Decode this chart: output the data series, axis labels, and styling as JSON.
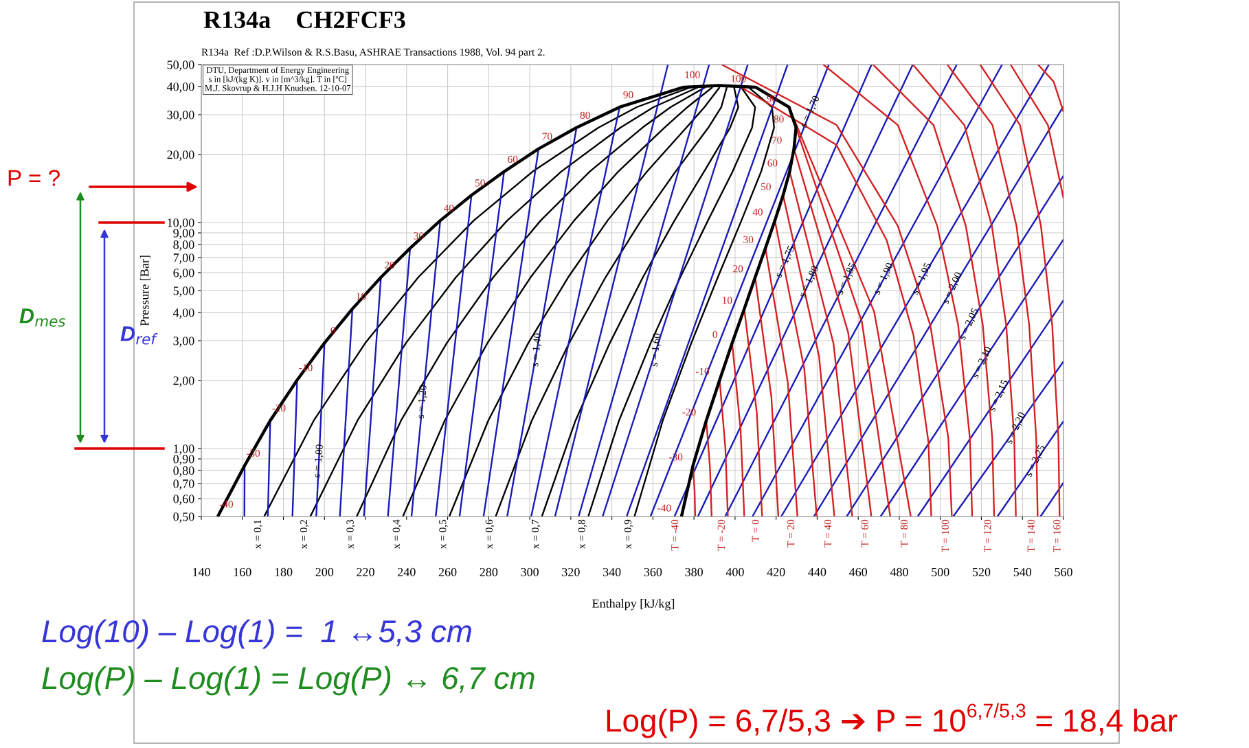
{
  "chart_data": {
    "type": "line",
    "title": "R134a    CH2FCF3",
    "subtitle": "R134a  Ref :D.P.Wilson & R.S.Basu, ASHRAE Transactions 1988, Vol. 94 part 2.",
    "xlabel": "Enthalpy [kJ/kg]",
    "ylabel": "Pressure [Bar]",
    "log": "y",
    "grid": true,
    "marker": "none",
    "line_style": "solid",
    "xlim": [
      140,
      560
    ],
    "ylim": [
      0.5,
      50
    ],
    "xticks": [
      140,
      160,
      180,
      200,
      220,
      240,
      260,
      280,
      300,
      320,
      340,
      360,
      380,
      400,
      420,
      440,
      460,
      480,
      500,
      520,
      540,
      560
    ],
    "yticks": [
      {
        "value": 50,
        "label": "50,00"
      },
      {
        "value": 40,
        "label": "40,00"
      },
      {
        "value": 30,
        "label": "30,00"
      },
      {
        "value": 20,
        "label": "20,00"
      },
      {
        "value": 10,
        "label": "10,00"
      },
      {
        "value": 9,
        "label": "9,00"
      },
      {
        "value": 8,
        "label": "8,00"
      },
      {
        "value": 7,
        "label": "7,00"
      },
      {
        "value": 6,
        "label": "6,00"
      },
      {
        "value": 5,
        "label": "5,00"
      },
      {
        "value": 4,
        "label": "4,00"
      },
      {
        "value": 3,
        "label": "3,00"
      },
      {
        "value": 2,
        "label": "2,00"
      },
      {
        "value": 1,
        "label": "1,00"
      },
      {
        "value": 0.9,
        "label": "0,90"
      },
      {
        "value": 0.8,
        "label": "0,80"
      },
      {
        "value": 0.7,
        "label": "0,70"
      },
      {
        "value": 0.6,
        "label": "0,60"
      },
      {
        "value": 0.5,
        "label": "0,50"
      }
    ],
    "series": [
      {
        "color": "#000000",
        "x": [
          148,
          161.1,
          173.6,
          186.7,
          200,
          213.6,
          227.5,
          241.7,
          256.4,
          271.6,
          287.5,
          304.3,
          322.8,
          343.8,
          375,
          392.2,
          410,
          426.3,
          429.7,
          428.7,
          426.6,
          423.4,
          419.4,
          414.8,
          409.8,
          404.5,
          398.6,
          392.5,
          386,
          379.5,
          373.9
        ],
        "values": [
          0.5,
          0.84,
          1.33,
          2.01,
          2.93,
          4.15,
          5.72,
          7.7,
          10.2,
          13.2,
          16.8,
          21.2,
          26.3,
          32.4,
          39.7,
          40.4,
          39.7,
          32.4,
          26.3,
          21.2,
          16.8,
          13.2,
          10.2,
          7.7,
          5.72,
          4.15,
          2.93,
          2.01,
          1.33,
          0.84,
          0.5
        ]
      },
      {
        "color": "#000000",
        "x": [
          170.6,
          194.8,
          219.9,
          245.7,
          272.7,
          301.4,
          333.5,
          352.1,
          378.5
        ],
        "values": [
          0.5,
          1.33,
          2.93,
          5.72,
          10.2,
          16.8,
          26.3,
          32.4,
          39.7
        ]
      },
      {
        "color": "#000000",
        "x": [
          193.1,
          216.1,
          239.7,
          264,
          289,
          315.3,
          344.2,
          360.3,
          382
        ],
        "values": [
          0.5,
          1.33,
          2.93,
          5.72,
          10.2,
          16.8,
          26.3,
          32.4,
          39.7
        ]
      },
      {
        "color": "#000000",
        "x": [
          215.7,
          237.3,
          259.6,
          282.2,
          305.3,
          329.2,
          354.9,
          368.6,
          385.5
        ],
        "values": [
          0.5,
          1.33,
          2.93,
          5.72,
          10.2,
          16.8,
          26.3,
          32.4,
          39.7
        ]
      },
      {
        "color": "#000000",
        "x": [
          238.2,
          258.6,
          279.4,
          300.4,
          321.6,
          343.1,
          365.6,
          376.8,
          389
        ],
        "values": [
          0.5,
          1.33,
          2.93,
          5.72,
          10.2,
          16.8,
          26.3,
          32.4,
          39.7
        ]
      },
      {
        "color": "#000000",
        "x": [
          260.8,
          279.8,
          299.3,
          318.7,
          337.9,
          357.1,
          376.3,
          385.1,
          392.5
        ],
        "values": [
          0.5,
          1.33,
          2.93,
          5.72,
          10.2,
          16.8,
          26.3,
          32.4,
          39.7
        ]
      },
      {
        "color": "#000000",
        "x": [
          283.4,
          301,
          319.2,
          336.9,
          354.2,
          371,
          387,
          393.3,
          396
        ],
        "values": [
          0.5,
          1.33,
          2.93,
          5.72,
          10.2,
          16.8,
          26.3,
          32.4,
          39.7
        ]
      },
      {
        "color": "#000000",
        "x": [
          305.9,
          322.3,
          339,
          355.1,
          370.5,
          384.9,
          397.6,
          401.6,
          399.5
        ],
        "values": [
          0.5,
          1.33,
          2.93,
          5.72,
          10.2,
          16.8,
          26.3,
          32.4,
          39.7
        ]
      },
      {
        "color": "#000000",
        "x": [
          328.5,
          343.5,
          358.9,
          373.3,
          386.8,
          398.8,
          408.3,
          409.8,
          403
        ],
        "values": [
          0.5,
          1.33,
          2.93,
          5.72,
          10.2,
          16.8,
          26.3,
          32.4,
          39.7
        ]
      },
      {
        "color": "#000000",
        "x": [
          351,
          364.8,
          378.7,
          391.6,
          403.1,
          412.7,
          419,
          418,
          406.5
        ],
        "values": [
          0.5,
          1.33,
          2.93,
          5.72,
          10.2,
          16.8,
          26.3,
          32.4,
          39.7
        ]
      },
      {
        "color": "#1a1ab8",
        "x": [
          161,
          161.1
        ],
        "values": [
          0.5,
          0.84
        ]
      },
      {
        "color": "#1a1ab8",
        "x": [
          172.4,
          173.6
        ],
        "values": [
          0.5,
          1.33
        ]
      },
      {
        "color": "#1a1ab8",
        "x": [
          184.4,
          186.7
        ],
        "values": [
          0.5,
          2.01
        ]
      },
      {
        "color": "#1a1ab8",
        "x": [
          196,
          200
        ],
        "values": [
          0.5,
          2.93
        ]
      },
      {
        "color": "#1a1ab8",
        "x": [
          207.5,
          213.6
        ],
        "values": [
          0.5,
          4.15
        ]
      },
      {
        "color": "#1a1ab8",
        "x": [
          219.2,
          227.5
        ],
        "values": [
          0.5,
          5.72
        ]
      },
      {
        "color": "#1a1ab8",
        "x": [
          230.9,
          241.7
        ],
        "values": [
          0.5,
          7.7
        ]
      },
      {
        "color": "#1a1ab8",
        "x": [
          242.4,
          256.4
        ],
        "values": [
          0.5,
          10.2
        ]
      },
      {
        "color": "#1a1ab8",
        "x": [
          254.2,
          271.6
        ],
        "values": [
          0.5,
          13.2
        ]
      },
      {
        "color": "#1a1ab8",
        "x": [
          265.8,
          287.5
        ],
        "values": [
          0.5,
          16.8
        ]
      },
      {
        "color": "#1a1ab8",
        "x": [
          277.5,
          304.3
        ],
        "values": [
          0.5,
          21.2
        ]
      },
      {
        "color": "#1a1ab8",
        "x": [
          289,
          322.8
        ],
        "values": [
          0.5,
          26.3
        ]
      },
      {
        "color": "#1a1ab8",
        "x": [
          300.7,
          343.8
        ],
        "values": [
          0.5,
          32.4
        ]
      },
      {
        "color": "#1a1ab8",
        "x": [
          312.3,
          367.3
        ],
        "values": [
          0.5,
          50
        ]
      },
      {
        "color": "#1a1ab8",
        "x": [
          323.8,
          387.4
        ],
        "values": [
          0.5,
          50
        ]
      },
      {
        "color": "#1a1ab8",
        "x": [
          335.5,
          406.2
        ],
        "values": [
          0.5,
          50
        ]
      },
      {
        "color": "#1a1ab8",
        "x": [
          347.2,
          425.6
        ],
        "values": [
          0.5,
          50
        ]
      },
      {
        "color": "#1a1ab8",
        "x": [
          358.8,
          445.7
        ],
        "values": [
          0.5,
          50
        ]
      },
      {
        "color": "#1a1ab8",
        "x": [
          370.5,
          466.5
        ],
        "values": [
          0.5,
          50
        ]
      },
      {
        "color": "#1a1ab8",
        "x": [
          381.9,
          486.6
        ],
        "values": [
          0.5,
          50
        ]
      },
      {
        "color": "#1a1ab8",
        "x": [
          395.2,
          508
        ],
        "values": [
          0.5,
          50
        ]
      },
      {
        "color": "#1a1ab8",
        "x": [
          408.5,
          530.1
        ],
        "values": [
          0.5,
          50
        ]
      },
      {
        "color": "#1a1ab8",
        "x": [
          422.5,
          552.9
        ],
        "values": [
          0.5,
          50
        ]
      },
      {
        "color": "#1a1ab8",
        "x": [
          438.4,
          560
        ],
        "values": [
          0.5,
          32.7
        ]
      },
      {
        "color": "#1a1ab8",
        "x": [
          454.4,
          560
        ],
        "values": [
          0.5,
          16.1
        ]
      },
      {
        "color": "#1a1ab8",
        "x": [
          470.9,
          560
        ],
        "values": [
          0.5,
          8.42
        ]
      },
      {
        "color": "#1a1ab8",
        "x": [
          489,
          560
        ],
        "values": [
          0.5,
          4.53
        ]
      },
      {
        "color": "#1a1ab8",
        "x": [
          506.3,
          560
        ],
        "values": [
          0.5,
          2.43
        ]
      },
      {
        "color": "#1a1ab8",
        "x": [
          527.8,
          560
        ],
        "values": [
          0.5,
          1.32
        ]
      },
      {
        "color": "#1a1ab8",
        "x": [
          548.8,
          560
        ],
        "values": [
          0.5,
          0.706
        ]
      },
      {
        "color": "#d42020",
        "x": [
          379.5,
          380.3,
          380.6
        ],
        "values": [
          0.84,
          0.65,
          0.5
        ]
      },
      {
        "color": "#d42020",
        "x": [
          386,
          387.8,
          388.6
        ],
        "values": [
          1.33,
          0.82,
          0.5
        ]
      },
      {
        "color": "#d42020",
        "x": [
          392.5,
          395.3,
          396.5
        ],
        "values": [
          2.01,
          1.0,
          0.5
        ]
      },
      {
        "color": "#d42020",
        "x": [
          398.6,
          402.7,
          404.5
        ],
        "values": [
          2.93,
          1.21,
          0.5
        ]
      },
      {
        "color": "#d42020",
        "x": [
          404.5,
          410.6,
          413.2
        ],
        "values": [
          4.15,
          1.44,
          0.5
        ]
      },
      {
        "color": "#d42020",
        "x": [
          409.8,
          417.7,
          421.1
        ],
        "values": [
          5.72,
          1.69,
          0.5
        ]
      },
      {
        "color": "#d42020",
        "x": [
          414.8,
          425.7,
          430.4
        ],
        "values": [
          7.7,
          1.96,
          0.5
        ]
      },
      {
        "color": "#d42020",
        "x": [
          419.4,
          433.7,
          439.8
        ],
        "values": [
          10.2,
          2.26,
          0.5
        ]
      },
      {
        "color": "#d42020",
        "x": [
          423.4,
          440.9,
          448.4
        ],
        "values": [
          13.2,
          2.57,
          0.5
        ]
      },
      {
        "color": "#d42020",
        "x": [
          426.6,
          448,
          457.1
        ],
        "values": [
          16.8,
          2.9,
          0.5
        ]
      },
      {
        "color": "#d42020",
        "x": [
          428.7,
          455.1,
          466.4
        ],
        "values": [
          21.2,
          3.26,
          0.5
        ]
      },
      {
        "color": "#d42020",
        "x": [
          429.7,
          461.8,
          475.6
        ],
        "values": [
          26.3,
          3.63,
          0.5
        ]
      },
      {
        "color": "#d42020",
        "x": [
          426.3,
          467.8,
          485.6
        ],
        "values": [
          32.4,
          4.02,
          0.5
        ]
      },
      {
        "color": "#d42020",
        "x": [
          403,
          449.3,
          473.9,
          486.9,
          494.2,
          495.6
        ],
        "values": [
          39.7,
          22.1,
          8.33,
          3.18,
          1.07,
          0.5
        ]
      },
      {
        "color": "#d42020",
        "x": [
          393.5,
          449.5,
          479.3,
          495.1,
          503.9,
          505.6
        ],
        "values": [
          50,
          27,
          9.66,
          3.51,
          1.11,
          0.5
        ]
      },
      {
        "color": "#d42020",
        "x": [
          443,
          479.3,
          498.5,
          508.7,
          514.4,
          515.5
        ],
        "values": [
          50,
          27,
          9.66,
          3.51,
          1.11,
          0.5
        ]
      },
      {
        "color": "#d42020",
        "x": [
          467.2,
          496.7,
          512.4,
          520.7,
          525.3,
          526.2
        ],
        "values": [
          50,
          27,
          9.66,
          3.51,
          1.11,
          0.5
        ]
      },
      {
        "color": "#d42020",
        "x": [
          486.6,
          511.7,
          525.1,
          532.1,
          536,
          536.8
        ],
        "values": [
          50,
          27,
          9.66,
          3.51,
          1.11,
          0.5
        ]
      },
      {
        "color": "#d42020",
        "x": [
          503.4,
          525.4,
          537.1,
          543.3,
          546.7,
          547.4
        ],
        "values": [
          50,
          27,
          9.66,
          3.51,
          1.11,
          0.5
        ]
      },
      {
        "color": "#d42020",
        "x": [
          519.4,
          538.8,
          549,
          554.5,
          557.5,
          558.1
        ],
        "values": [
          50,
          27,
          9.66,
          3.51,
          1.11,
          0.5
        ]
      },
      {
        "color": "#d42020",
        "x": [
          534.2,
          552.4,
          560
        ],
        "values": [
          50,
          27,
          12.8
        ]
      },
      {
        "color": "#d42020",
        "x": [
          547.6,
          555.2,
          560
        ],
        "values": [
          50,
          42,
          30.9
        ]
      }
    ],
    "annotations": [
      "DTU, Department of Energy Engineering\ns in [kJ/(kg K)]. v in [m^3/kg]. T in [ºC]\nM.J. Skovrup & H.J.H Knudsen. 12-10-07",
      "P = ?",
      "D$_{mes}$",
      "D$_{ref}$",
      "Log(10) – Log(1) =  1 ↔5,3 cm",
      "Log(P) – Log(1) = Log(P) ↔ 6,7 cm",
      "Log(P) = 6,7/5,3 ➔ P = 10$^{6,7/5,3}$ = 18,4 bar",
      {
        "text": "-40",
        "x": 148,
        "y": 0.5
      },
      {
        "text": "-30",
        "x": 161.1,
        "y": 0.84
      },
      {
        "text": "-20",
        "x": 173.6,
        "y": 1.33
      },
      {
        "text": "-10",
        "x": 186.7,
        "y": 2.01
      },
      {
        "text": "0",
        "x": 200,
        "y": 2.93
      },
      {
        "text": "10",
        "x": 213.6,
        "y": 4.15
      },
      {
        "text": "20",
        "x": 227.5,
        "y": 5.72
      },
      {
        "text": "30",
        "x": 241.7,
        "y": 7.7
      },
      {
        "text": "40",
        "x": 256.4,
        "y": 10.2
      },
      {
        "text": "50",
        "x": 271.6,
        "y": 13.2
      },
      {
        "text": "60",
        "x": 287.5,
        "y": 16.8
      },
      {
        "text": "70",
        "x": 304.3,
        "y": 21.2
      },
      {
        "text": "80",
        "x": 322.8,
        "y": 26.3
      },
      {
        "text": "90",
        "x": 343.8,
        "y": 32.4
      },
      {
        "text": "100",
        "x": 375,
        "y": 39.7
      },
      {
        "text": "-40",
        "x": 373.9,
        "y": 0.5
      },
      {
        "text": "-30",
        "x": 379.5,
        "y": 0.84
      },
      {
        "text": "-20",
        "x": 386,
        "y": 1.33
      },
      {
        "text": "-10",
        "x": 392.5,
        "y": 2.01
      },
      {
        "text": "0",
        "x": 398.6,
        "y": 2.93
      },
      {
        "text": "10",
        "x": 404.5,
        "y": 4.15
      },
      {
        "text": "20",
        "x": 409.8,
        "y": 5.72
      },
      {
        "text": "30",
        "x": 414.8,
        "y": 7.7
      },
      {
        "text": "40",
        "x": 419.4,
        "y": 10.2
      },
      {
        "text": "50",
        "x": 423.4,
        "y": 13.2
      },
      {
        "text": "60",
        "x": 426.6,
        "y": 16.8
      },
      {
        "text": "70",
        "x": 428.7,
        "y": 21.2
      },
      {
        "text": "80",
        "x": 429.7,
        "y": 26.3
      },
      {
        "text": "90",
        "x": 426.3,
        "y": 32.4
      },
      {
        "text": "100",
        "x": 410,
        "y": 39.7
      },
      {
        "text": "s = 1,00",
        "x": 197.3,
        "y": 0.88
      },
      {
        "text": "s = 1,20",
        "x": 247.8,
        "y": 1.61
      },
      {
        "text": "s = 1,40",
        "x": 303.5,
        "y": 2.73
      },
      {
        "text": "s = 1,60",
        "x": 361.6,
        "y": 2.73
      },
      {
        "text": "s = 1,70",
        "x": 436.7,
        "y": 30.9
      },
      {
        "text": "s = 1,75",
        "x": 424.6,
        "y": 6.7
      },
      {
        "text": "s = 1,80",
        "x": 436.2,
        "y": 5.46
      },
      {
        "text": "s = 1,85",
        "x": 454.5,
        "y": 5.63
      },
      {
        "text": "s = 1,90",
        "x": 472.5,
        "y": 5.63
      },
      {
        "text": "s = 1,95",
        "x": 491.1,
        "y": 5.63
      },
      {
        "text": "s = 2,00",
        "x": 506,
        "y": 5.12
      },
      {
        "text": "s = 2,05",
        "x": 514.1,
        "y": 3.55
      },
      {
        "text": "s = 2,10",
        "x": 520.4,
        "y": 2.4
      },
      {
        "text": "s = 2,15",
        "x": 528.6,
        "y": 1.71
      },
      {
        "text": "s = 2,20",
        "x": 536.9,
        "y": 1.23
      },
      {
        "text": "s = 2,25",
        "x": 546.5,
        "y": 0.88
      },
      "x = 0,1",
      "x = 0,2",
      "x = 0,3",
      "x = 0,4",
      "x = 0,5",
      "x = 0,6",
      "x = 0,7",
      "x = 0,8",
      "x = 0,9",
      "T = -40",
      "T = -20",
      "T = 0",
      "T = 20",
      "T = 40",
      "T = 60",
      "T = 80",
      "T = 100",
      "T = 120",
      "T = 140",
      "T = 160"
    ]
  }
}
